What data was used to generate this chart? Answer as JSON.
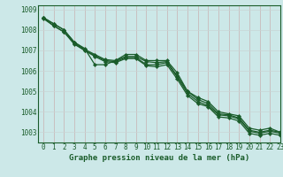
{
  "title": "Graphe pression niveau de la mer (hPa)",
  "background_color": "#cce8e8",
  "grid_color": "#b0d4d4",
  "line_color": "#1a5c2a",
  "xlim": [
    -0.5,
    23
  ],
  "ylim": [
    1002.5,
    1009.2
  ],
  "yticks": [
    1003,
    1004,
    1005,
    1006,
    1007,
    1008,
    1009
  ],
  "xticks": [
    0,
    1,
    2,
    3,
    4,
    5,
    6,
    7,
    8,
    9,
    10,
    11,
    12,
    13,
    14,
    15,
    16,
    17,
    18,
    19,
    20,
    21,
    22,
    23
  ],
  "series": [
    [
      1008.6,
      1008.3,
      1008.0,
      1007.4,
      1007.1,
      1006.3,
      1006.3,
      1006.5,
      1006.8,
      1006.8,
      1006.5,
      1006.5,
      1006.5,
      1005.9,
      1005.0,
      1004.7,
      1004.5,
      1004.0,
      1003.9,
      1003.8,
      1003.2,
      1003.1,
      1003.2,
      1003.0
    ],
    [
      1008.6,
      1008.3,
      1008.0,
      1007.4,
      1007.05,
      1006.8,
      1006.55,
      1006.5,
      1006.7,
      1006.7,
      1006.45,
      1006.4,
      1006.45,
      1005.75,
      1005.0,
      1004.6,
      1004.4,
      1003.9,
      1003.85,
      1003.7,
      1003.1,
      1003.0,
      1003.1,
      1003.0
    ],
    [
      1008.6,
      1008.2,
      1007.9,
      1007.35,
      1007.0,
      1006.75,
      1006.5,
      1006.45,
      1006.65,
      1006.65,
      1006.3,
      1006.3,
      1006.4,
      1005.7,
      1004.9,
      1004.5,
      1004.3,
      1003.85,
      1003.8,
      1003.65,
      1003.05,
      1002.95,
      1003.05,
      1002.95
    ],
    [
      1008.55,
      1008.2,
      1007.9,
      1007.3,
      1007.0,
      1006.7,
      1006.45,
      1006.4,
      1006.6,
      1006.6,
      1006.25,
      1006.2,
      1006.3,
      1005.6,
      1004.8,
      1004.4,
      1004.25,
      1003.75,
      1003.7,
      1003.55,
      1002.95,
      1002.85,
      1002.95,
      1002.85
    ]
  ],
  "tick_fontsize": 5.5,
  "label_fontsize": 6.5
}
